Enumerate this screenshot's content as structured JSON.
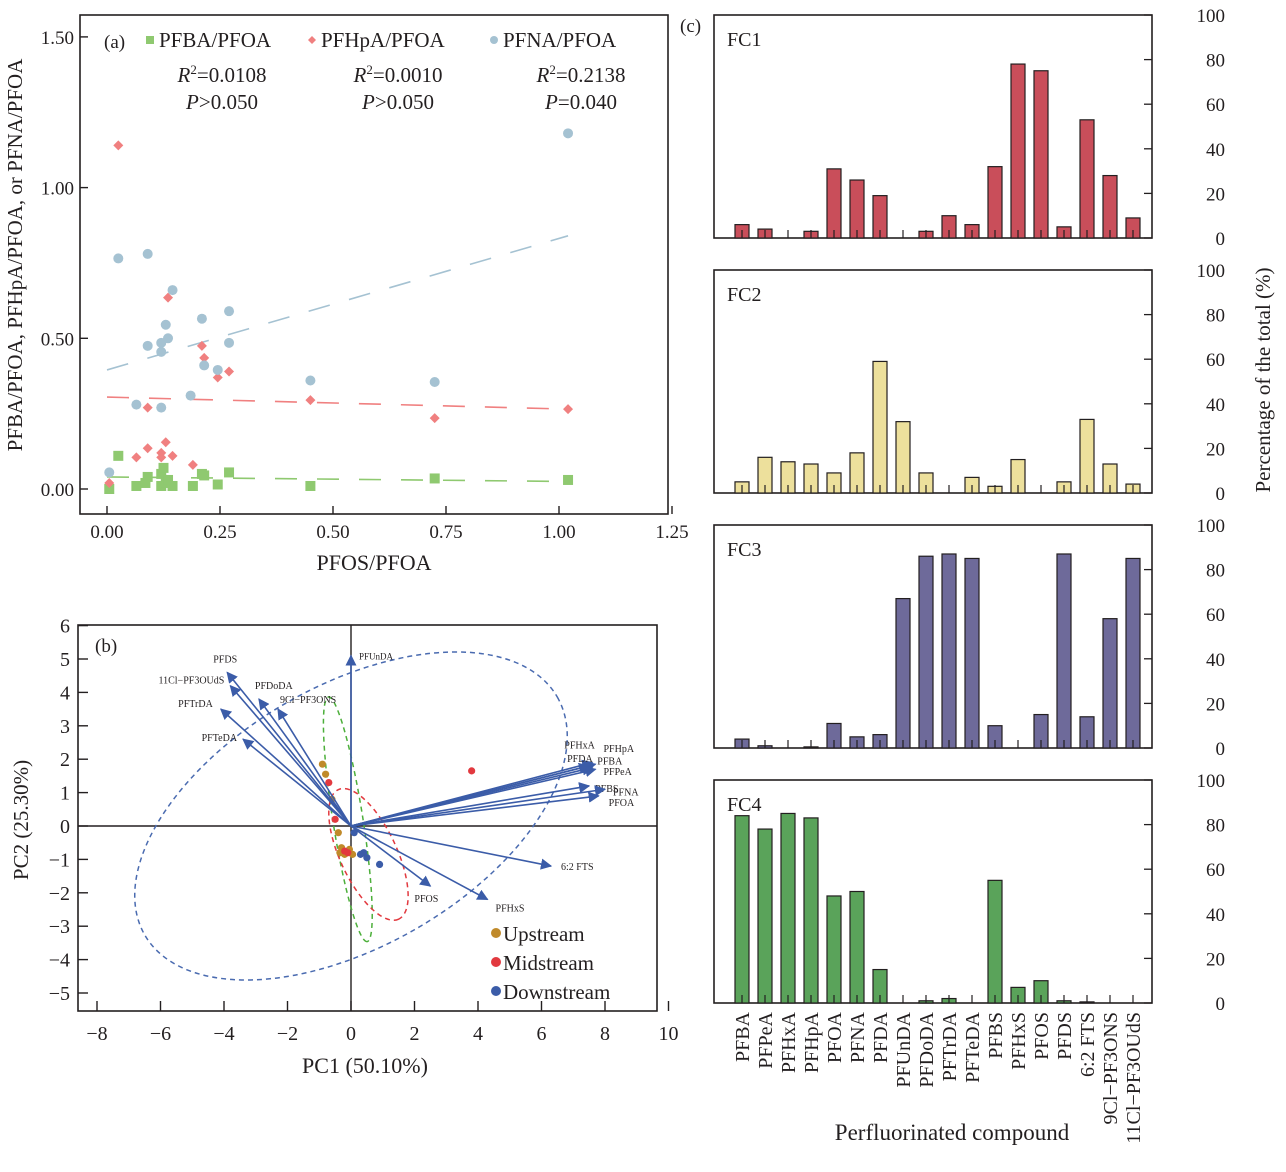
{
  "chart_data": [
    {
      "id": "a",
      "type": "scatter",
      "panel_label": "(a)",
      "xlabel": "PFOS/PFOA",
      "ylabel": "PFBA/PFOA, PFHpA/PFOA, or PFNA/PFOA",
      "xlim": [
        -0.06,
        1.26
      ],
      "ylim": [
        -0.08,
        1.58
      ],
      "xticks": [
        0.0,
        0.25,
        0.5,
        0.75,
        1.0,
        1.25
      ],
      "xtick_labels": [
        "0.00",
        "0.25",
        "0.50",
        "0.75",
        "1.00",
        "1.25"
      ],
      "yticks": [
        0.0,
        0.5,
        1.0,
        1.5
      ],
      "ytick_labels": [
        "0.00",
        "0.50",
        "1.00",
        "1.50"
      ],
      "legend_position": "top",
      "series": [
        {
          "name": "PFBA/PFOA",
          "marker": "square",
          "color": "#8fc970",
          "r2_label": "R²=0.0108",
          "r2_prefix": "R",
          "r2_value": "=0.0108",
          "p_prefix": "P",
          "p_value": ">0.050",
          "trend": [
            [
              0.0,
              0.04
            ],
            [
              1.02,
              0.025
            ]
          ],
          "points": [
            [
              0.005,
              0.0
            ],
            [
              0.025,
              0.11
            ],
            [
              0.065,
              0.01
            ],
            [
              0.085,
              0.02
            ],
            [
              0.09,
              0.04
            ],
            [
              0.12,
              0.01
            ],
            [
              0.12,
              0.05
            ],
            [
              0.125,
              0.07
            ],
            [
              0.13,
              0.02
            ],
            [
              0.135,
              0.03
            ],
            [
              0.145,
              0.01
            ],
            [
              0.19,
              0.01
            ],
            [
              0.21,
              0.05
            ],
            [
              0.215,
              0.045
            ],
            [
              0.245,
              0.015
            ],
            [
              0.27,
              0.055
            ],
            [
              0.45,
              0.01
            ],
            [
              0.725,
              0.035
            ],
            [
              1.02,
              0.03
            ]
          ]
        },
        {
          "name": "PFHpA/PFOA",
          "marker": "diamond",
          "color": "#f08080",
          "r2_prefix": "R",
          "r2_value": "=0.0010",
          "p_prefix": "P",
          "p_value": ">0.050",
          "trend": [
            [
              0.0,
              0.305
            ],
            [
              1.02,
              0.265
            ]
          ],
          "points": [
            [
              0.005,
              0.02
            ],
            [
              0.025,
              1.14
            ],
            [
              0.065,
              0.105
            ],
            [
              0.09,
              0.135
            ],
            [
              0.09,
              0.27
            ],
            [
              0.12,
              0.12
            ],
            [
              0.12,
              0.105
            ],
            [
              0.13,
              0.155
            ],
            [
              0.135,
              0.635
            ],
            [
              0.145,
              0.11
            ],
            [
              0.19,
              0.08
            ],
            [
              0.21,
              0.475
            ],
            [
              0.215,
              0.435
            ],
            [
              0.245,
              0.37
            ],
            [
              0.27,
              0.39
            ],
            [
              0.45,
              0.295
            ],
            [
              0.725,
              0.235
            ],
            [
              1.02,
              0.265
            ]
          ]
        },
        {
          "name": "PFNA/PFOA",
          "marker": "circle",
          "color": "#a5c2d2",
          "r2_prefix": "R",
          "r2_value": "=0.2138",
          "p_prefix": "P",
          "p_value": "=0.040",
          "trend": [
            [
              0.0,
              0.395
            ],
            [
              1.02,
              0.84
            ]
          ],
          "points": [
            [
              0.005,
              0.055
            ],
            [
              0.025,
              0.765
            ],
            [
              0.065,
              0.28
            ],
            [
              0.09,
              0.78
            ],
            [
              0.09,
              0.475
            ],
            [
              0.12,
              0.27
            ],
            [
              0.12,
              0.455
            ],
            [
              0.12,
              0.485
            ],
            [
              0.13,
              0.545
            ],
            [
              0.135,
              0.5
            ],
            [
              0.145,
              0.66
            ],
            [
              0.185,
              0.31
            ],
            [
              0.21,
              0.565
            ],
            [
              0.215,
              0.41
            ],
            [
              0.245,
              0.395
            ],
            [
              0.27,
              0.59
            ],
            [
              0.27,
              0.485
            ],
            [
              0.45,
              0.36
            ],
            [
              0.725,
              0.355
            ],
            [
              1.02,
              1.18
            ]
          ]
        }
      ]
    },
    {
      "id": "b",
      "type": "scatter",
      "subtype": "pca-biplot",
      "panel_label": "(b)",
      "xlabel": "PC1 (50.10%)",
      "ylabel": "PC2 (25.30%)",
      "xlim": [
        -9,
        10
      ],
      "ylim": [
        -5.5,
        6
      ],
      "xticks": [
        -8,
        -6,
        -4,
        -2,
        0,
        2,
        4,
        6,
        8,
        10
      ],
      "xtick_labels": [
        "−8",
        "−6",
        "−4",
        "−2",
        "0",
        "2",
        "4",
        "6",
        "8",
        "10"
      ],
      "yticks": [
        -5,
        -4,
        -3,
        -2,
        -1,
        0,
        1,
        2,
        3,
        4,
        5,
        6
      ],
      "ytick_labels": [
        "−5",
        "−4",
        "−3",
        "−2",
        "−1",
        "0",
        "1",
        "2",
        "3",
        "4",
        "5",
        "6"
      ],
      "legend_position": "bottom-right",
      "loadings": [
        {
          "name": "PFUnDA",
          "x": 0.0,
          "y": 5.1
        },
        {
          "name": "PFDS",
          "x": -3.9,
          "y": 4.6
        },
        {
          "name": "11Cl−PF3OUdS",
          "x": -3.8,
          "y": 4.2
        },
        {
          "name": "PFDoDA",
          "x": -2.9,
          "y": 3.8
        },
        {
          "name": "9Cl−PF3ONS",
          "x": -2.3,
          "y": 3.5
        },
        {
          "name": "PFTrDA",
          "x": -4.1,
          "y": 3.5
        },
        {
          "name": "PFTeDA",
          "x": -3.4,
          "y": 2.6
        },
        {
          "name": "PFHxA",
          "x": 7.6,
          "y": 1.9
        },
        {
          "name": "PFHpA",
          "x": 7.7,
          "y": 1.85
        },
        {
          "name": "PFDA",
          "x": 7.5,
          "y": 1.8
        },
        {
          "name": "PFBA",
          "x": 7.6,
          "y": 1.75
        },
        {
          "name": "PFPeA",
          "x": 7.7,
          "y": 1.7
        },
        {
          "name": "PFBS",
          "x": 7.5,
          "y": 1.2
        },
        {
          "name": "PFNA",
          "x": 8.0,
          "y": 1.1
        },
        {
          "name": "PFOA",
          "x": 7.8,
          "y": 0.9
        },
        {
          "name": "6:2 FTS",
          "x": 6.3,
          "y": -1.2
        },
        {
          "name": "PFOS",
          "x": 2.5,
          "y": -1.8
        },
        {
          "name": "PFHxS",
          "x": 4.3,
          "y": -2.2
        }
      ],
      "groups": [
        {
          "name": "Upstream",
          "color": "#c08a2a",
          "points": [
            [
              -0.9,
              1.85
            ],
            [
              -0.8,
              1.55
            ],
            [
              -0.6,
              0.8
            ],
            [
              -0.4,
              -0.2
            ],
            [
              -0.3,
              -0.65
            ],
            [
              -0.2,
              -0.85
            ],
            [
              -0.05,
              -0.7
            ],
            [
              0.05,
              -0.85
            ],
            [
              -0.35,
              -0.8
            ]
          ],
          "ellipse": {
            "cx": -0.1,
            "cy": 0.2,
            "rx": 3.9,
            "ry": 0.45,
            "angle_deg": -81
          }
        },
        {
          "name": "Midstream",
          "color": "#e2393f",
          "points": [
            [
              3.8,
              1.65
            ],
            [
              -0.7,
              1.3
            ],
            [
              -0.5,
              0.2
            ],
            [
              -0.1,
              -0.8
            ],
            [
              -0.2,
              -0.75
            ]
          ],
          "ellipse": {
            "cx": 0.55,
            "cy": -0.85,
            "rx": 2.25,
            "ry": 0.85,
            "angle_deg": -65
          }
        },
        {
          "name": "Downstream",
          "color": "#3b5ca8",
          "points": [
            [
              0.1,
              -0.2
            ],
            [
              0.4,
              -0.8
            ],
            [
              0.5,
              -0.95
            ],
            [
              0.9,
              -1.15
            ],
            [
              0.3,
              -0.85
            ]
          ],
          "ellipse": {
            "cx": 0.0,
            "cy": 0.3,
            "rx": 7.5,
            "ry": 3.9,
            "angle_deg": 30
          }
        }
      ]
    },
    {
      "id": "c",
      "type": "bar",
      "panel_label": "(c)",
      "xlabel": "Perfluorinated compound",
      "ylabel": "Percentage of the total (%)",
      "ylim": [
        0,
        100
      ],
      "yticks": [
        0,
        20,
        40,
        60,
        80,
        100
      ],
      "categories": [
        "PFBA",
        "PFPeA",
        "PFHxA",
        "PFHpA",
        "PFOA",
        "PFNA",
        "PFDA",
        "PFUnDA",
        "PFDoDA",
        "PFTrDA",
        "PFTeDA",
        "PFBS",
        "PFHxS",
        "PFOS",
        "PFDS",
        "6:2 FTS",
        "9Cl−PF3ONS",
        "11Cl−PF3OUdS"
      ],
      "panels": [
        {
          "name": "FC1",
          "color": "#c94e5a",
          "values": [
            6,
            4,
            0,
            3,
            31,
            26,
            19,
            0,
            3,
            10,
            6,
            32,
            78,
            75,
            5,
            53,
            28,
            9
          ]
        },
        {
          "name": "FC2",
          "color": "#ede09c",
          "values": [
            5,
            16,
            14,
            13,
            9,
            18,
            59,
            32,
            9,
            0,
            7,
            3,
            15,
            0,
            5,
            33,
            13,
            4
          ]
        },
        {
          "name": "FC3",
          "color": "#6e6a9a",
          "values": [
            4,
            1,
            0,
            0.5,
            11,
            5,
            6,
            67,
            86,
            87,
            85,
            10,
            0,
            15,
            87,
            14,
            58,
            85
          ]
        },
        {
          "name": "FC4",
          "color": "#5aa35a",
          "values": [
            84,
            78,
            85,
            83,
            48,
            50,
            15,
            0,
            1,
            2,
            0,
            55,
            7,
            10,
            1,
            0.5,
            0,
            0
          ]
        }
      ]
    }
  ]
}
